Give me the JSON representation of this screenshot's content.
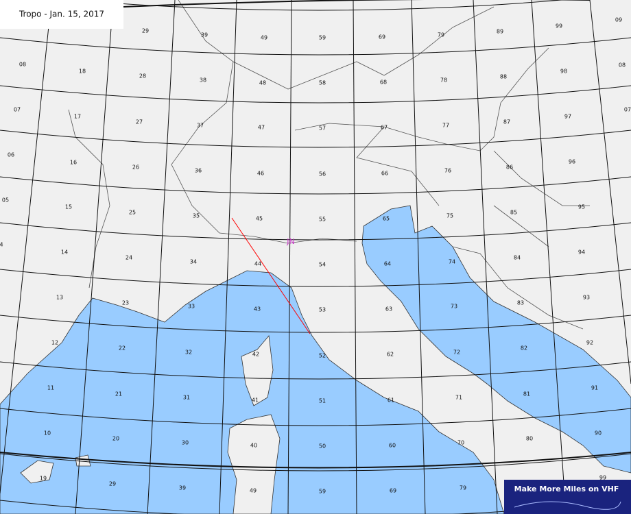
{
  "title": "Tropo - Jan. 15, 2017",
  "locator": "JN",
  "logo": "Make More Miles on VHF",
  "grid_labels": [
    "29",
    "39",
    "49",
    "59",
    "69",
    "79",
    "89",
    "99",
    "09",
    "08",
    "18",
    "28",
    "38",
    "48",
    "58",
    "68",
    "78",
    "88",
    "98",
    "08",
    "07",
    "17",
    "27",
    "37",
    "47",
    "57",
    "67",
    "77",
    "87",
    "97",
    "07",
    "06",
    "16",
    "26",
    "36",
    "46",
    "56",
    "66",
    "76",
    "86",
    "96",
    "05",
    "15",
    "25",
    "35",
    "45",
    "55",
    "65",
    "75",
    "85",
    "95",
    "4",
    "14",
    "24",
    "34",
    "44",
    "54",
    "64",
    "74",
    "84",
    "94",
    "13",
    "23",
    "33",
    "43",
    "53",
    "63",
    "73",
    "83",
    "93",
    "12",
    "22",
    "32",
    "42",
    "52",
    "62",
    "72",
    "82",
    "92",
    "11",
    "21",
    "31",
    "41",
    "51",
    "61",
    "71",
    "81",
    "91",
    "10",
    "20",
    "30",
    "40",
    "50",
    "60",
    "70",
    "80",
    "90",
    "19",
    "29",
    "39",
    "49",
    "59",
    "69",
    "79",
    "99"
  ]
}
